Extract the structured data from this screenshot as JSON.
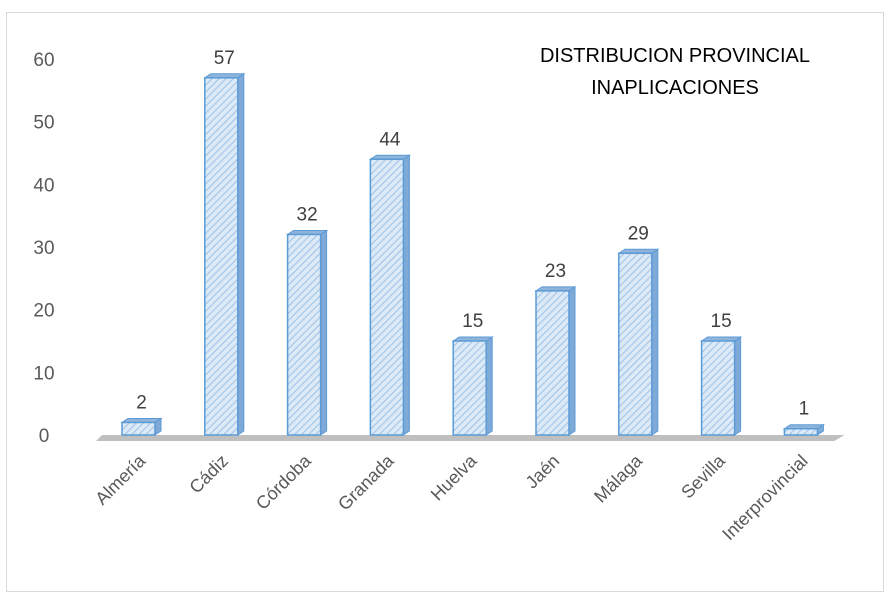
{
  "chart_data": {
    "type": "bar",
    "title_lines": [
      "DISTRIBUCION PROVINCIAL",
      "INAPLICACIONES"
    ],
    "categories": [
      "Almería",
      "Cádiz",
      "Córdoba",
      "Granada",
      "Huelva",
      "Jaén",
      "Málaga",
      "Sevilla",
      "Interprovincial"
    ],
    "values": [
      2,
      57,
      32,
      44,
      15,
      23,
      29,
      15,
      1
    ],
    "ylim": [
      0,
      60
    ],
    "yticks": [
      "0",
      "10",
      "20",
      "30",
      "40",
      "50",
      "60"
    ],
    "data_labels": [
      "2",
      "57",
      "32",
      "44",
      "15",
      "23",
      "29",
      "15",
      "1"
    ],
    "grid": false,
    "legend": "none",
    "bar_fill": "#dce9f7",
    "bar_stroke": "#5b9bd5",
    "floor_color": "#bfbfbf"
  }
}
